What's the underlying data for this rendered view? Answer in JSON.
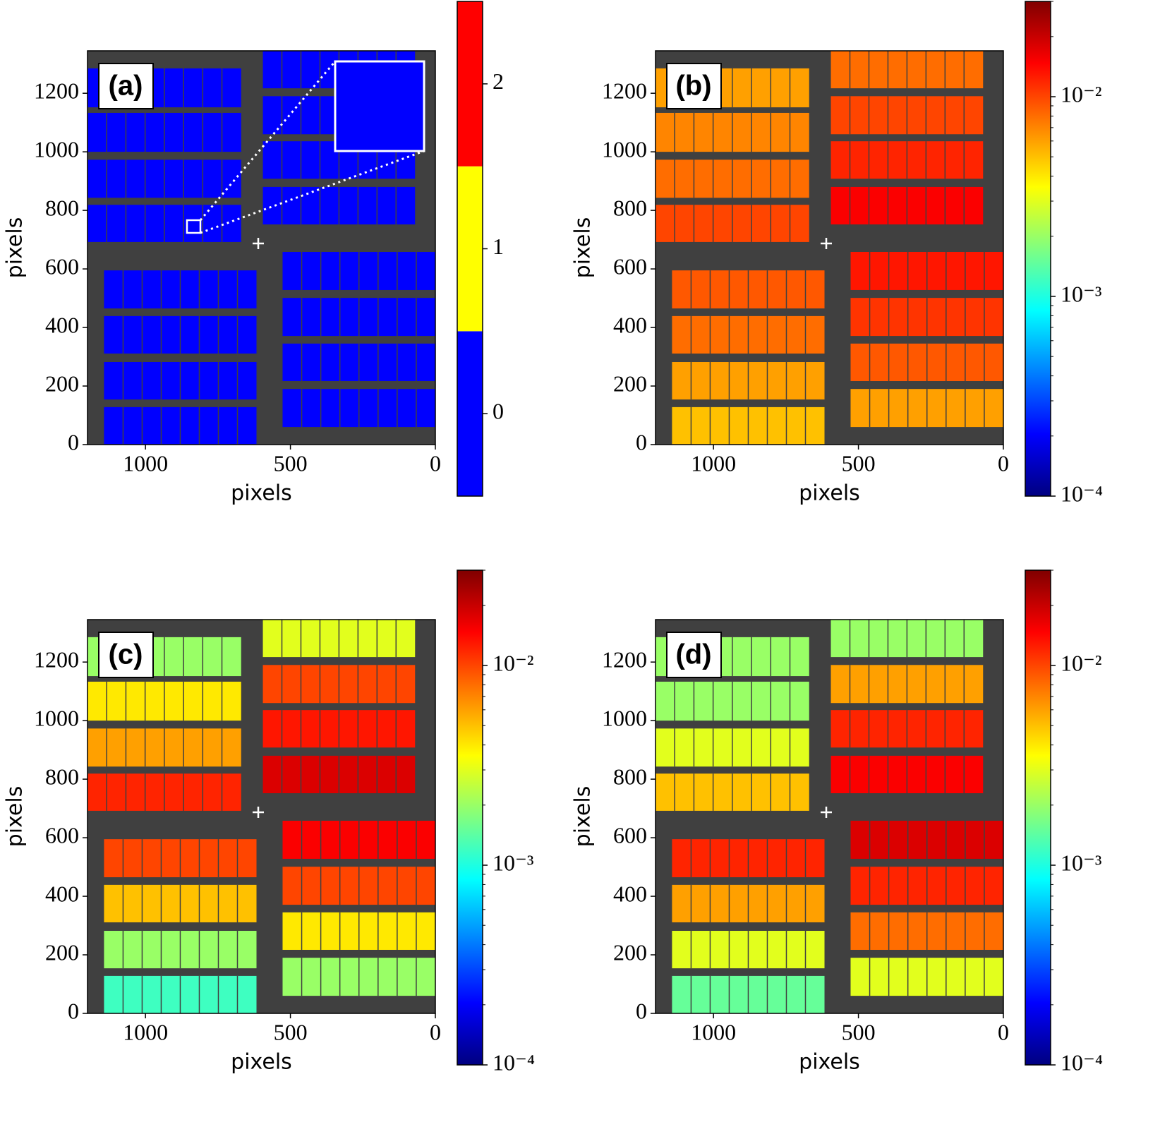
{
  "chart_data": [
    {
      "type": "heatmap",
      "panel_label": "(a)",
      "xlabel": "pixels",
      "ylabel": "pixels",
      "xlim": [
        1200,
        0
      ],
      "ylim": [
        0,
        1345
      ],
      "xticks": [
        1000,
        500,
        0
      ],
      "yticks": [
        0,
        200,
        400,
        600,
        800,
        1000,
        1200
      ],
      "colormap": "discrete",
      "colors": [
        "#0000ff",
        "#ffff00",
        "#ff0000"
      ],
      "clim": [
        -0.5,
        2.5
      ],
      "cticks": [
        0,
        1,
        2
      ],
      "clog": false,
      "modules": [
        {
          "x": [
            670,
            1200
          ],
          "y": [
            1152,
            1285
          ]
        },
        {
          "x": [
            670,
            1200
          ],
          "y": [
            1000,
            1133
          ]
        },
        {
          "x": [
            670,
            1200
          ],
          "y": [
            843,
            973
          ]
        },
        {
          "x": [
            670,
            1200
          ],
          "y": [
            692,
            819
          ]
        },
        {
          "x": [
            70,
            595
          ],
          "y": [
            1217,
            1345
          ]
        },
        {
          "x": [
            70,
            595
          ],
          "y": [
            1060,
            1190
          ]
        },
        {
          "x": [
            70,
            595
          ],
          "y": [
            908,
            1036
          ]
        },
        {
          "x": [
            70,
            595
          ],
          "y": [
            752,
            880
          ]
        },
        {
          "x": [
            617,
            1143
          ],
          "y": [
            465,
            595
          ]
        },
        {
          "x": [
            617,
            1143
          ],
          "y": [
            311,
            439
          ]
        },
        {
          "x": [
            617,
            1143
          ],
          "y": [
            154,
            282
          ]
        },
        {
          "x": [
            617,
            1143
          ],
          "y": [
            0,
            128
          ]
        },
        {
          "x": [
            0,
            527
          ],
          "y": [
            528,
            658
          ]
        },
        {
          "x": [
            0,
            527
          ],
          "y": [
            371,
            501
          ]
        },
        {
          "x": [
            0,
            527
          ],
          "y": [
            217,
            345
          ]
        },
        {
          "x": [
            0,
            527
          ],
          "y": [
            60,
            190
          ]
        }
      ],
      "values": [
        0,
        0,
        0,
        0,
        0,
        0,
        0,
        0,
        0,
        0,
        0,
        0,
        0,
        0,
        0,
        0
      ]
    },
    {
      "type": "heatmap",
      "panel_label": "(b)",
      "xlabel": "pixels",
      "ylabel": "pixels",
      "xlim": [
        1200,
        0
      ],
      "ylim": [
        0,
        1345
      ],
      "xticks": [
        1000,
        500,
        0
      ],
      "yticks": [
        0,
        200,
        400,
        600,
        800,
        1000,
        1200
      ],
      "colormap": "jet",
      "clim": [
        0.0001,
        0.03
      ],
      "clog": true,
      "cticks": [
        {
          "value": 0.0001,
          "label": "10⁻⁴"
        },
        {
          "value": 0.001,
          "label": "10⁻³"
        },
        {
          "value": 0.01,
          "label": "10⁻²"
        }
      ],
      "modules": [
        {
          "x": [
            670,
            1200
          ],
          "y": [
            1152,
            1285
          ]
        },
        {
          "x": [
            670,
            1200
          ],
          "y": [
            1000,
            1133
          ]
        },
        {
          "x": [
            670,
            1200
          ],
          "y": [
            843,
            973
          ]
        },
        {
          "x": [
            670,
            1200
          ],
          "y": [
            692,
            819
          ]
        },
        {
          "x": [
            70,
            595
          ],
          "y": [
            1217,
            1345
          ]
        },
        {
          "x": [
            70,
            595
          ],
          "y": [
            1060,
            1190
          ]
        },
        {
          "x": [
            70,
            595
          ],
          "y": [
            908,
            1036
          ]
        },
        {
          "x": [
            70,
            595
          ],
          "y": [
            752,
            880
          ]
        },
        {
          "x": [
            617,
            1143
          ],
          "y": [
            465,
            595
          ]
        },
        {
          "x": [
            617,
            1143
          ],
          "y": [
            311,
            439
          ]
        },
        {
          "x": [
            617,
            1143
          ],
          "y": [
            154,
            282
          ]
        },
        {
          "x": [
            617,
            1143
          ],
          "y": [
            0,
            128
          ]
        },
        {
          "x": [
            0,
            527
          ],
          "y": [
            528,
            658
          ]
        },
        {
          "x": [
            0,
            527
          ],
          "y": [
            371,
            501
          ]
        },
        {
          "x": [
            0,
            527
          ],
          "y": [
            217,
            345
          ]
        },
        {
          "x": [
            0,
            527
          ],
          "y": [
            60,
            190
          ]
        }
      ],
      "values": [
        0.006,
        0.007,
        0.008,
        0.01,
        0.008,
        0.01,
        0.012,
        0.015,
        0.009,
        0.008,
        0.006,
        0.005,
        0.013,
        0.011,
        0.009,
        0.006
      ]
    },
    {
      "type": "heatmap",
      "panel_label": "(c)",
      "xlabel": "pixels",
      "ylabel": "pixels",
      "xlim": [
        1200,
        0
      ],
      "ylim": [
        0,
        1345
      ],
      "xticks": [
        1000,
        500,
        0
      ],
      "yticks": [
        0,
        200,
        400,
        600,
        800,
        1000,
        1200
      ],
      "colormap": "jet",
      "clim": [
        0.0001,
        0.03
      ],
      "clog": true,
      "cticks": [
        {
          "value": 0.0001,
          "label": "10⁻⁴"
        },
        {
          "value": 0.001,
          "label": "10⁻³"
        },
        {
          "value": 0.01,
          "label": "10⁻²"
        }
      ],
      "modules": [
        {
          "x": [
            670,
            1200
          ],
          "y": [
            1152,
            1285
          ]
        },
        {
          "x": [
            670,
            1200
          ],
          "y": [
            1000,
            1133
          ]
        },
        {
          "x": [
            670,
            1200
          ],
          "y": [
            843,
            973
          ]
        },
        {
          "x": [
            670,
            1200
          ],
          "y": [
            692,
            819
          ]
        },
        {
          "x": [
            70,
            595
          ],
          "y": [
            1217,
            1345
          ]
        },
        {
          "x": [
            70,
            595
          ],
          "y": [
            1060,
            1190
          ]
        },
        {
          "x": [
            70,
            595
          ],
          "y": [
            908,
            1036
          ]
        },
        {
          "x": [
            70,
            595
          ],
          "y": [
            752,
            880
          ]
        },
        {
          "x": [
            617,
            1143
          ],
          "y": [
            465,
            595
          ]
        },
        {
          "x": [
            617,
            1143
          ],
          "y": [
            311,
            439
          ]
        },
        {
          "x": [
            617,
            1143
          ],
          "y": [
            154,
            282
          ]
        },
        {
          "x": [
            617,
            1143
          ],
          "y": [
            0,
            128
          ]
        },
        {
          "x": [
            0,
            527
          ],
          "y": [
            528,
            658
          ]
        },
        {
          "x": [
            0,
            527
          ],
          "y": [
            371,
            501
          ]
        },
        {
          "x": [
            0,
            527
          ],
          "y": [
            217,
            345
          ]
        },
        {
          "x": [
            0,
            527
          ],
          "y": [
            60,
            190
          ]
        }
      ],
      "values": [
        0.002,
        0.004,
        0.006,
        0.012,
        0.003,
        0.01,
        0.013,
        0.018,
        0.01,
        0.005,
        0.002,
        0.0012,
        0.015,
        0.01,
        0.004,
        0.002
      ]
    },
    {
      "type": "heatmap",
      "panel_label": "(d)",
      "xlabel": "pixels",
      "ylabel": "pixels",
      "xlim": [
        1200,
        0
      ],
      "ylim": [
        0,
        1345
      ],
      "xticks": [
        1000,
        500,
        0
      ],
      "yticks": [
        0,
        200,
        400,
        600,
        800,
        1000,
        1200
      ],
      "colormap": "jet",
      "clim": [
        0.0001,
        0.03
      ],
      "clog": true,
      "cticks": [
        {
          "value": 0.0001,
          "label": "10⁻⁴"
        },
        {
          "value": 0.001,
          "label": "10⁻³"
        },
        {
          "value": 0.01,
          "label": "10⁻²"
        }
      ],
      "modules": [
        {
          "x": [
            670,
            1200
          ],
          "y": [
            1152,
            1285
          ]
        },
        {
          "x": [
            670,
            1200
          ],
          "y": [
            1000,
            1133
          ]
        },
        {
          "x": [
            670,
            1200
          ],
          "y": [
            843,
            973
          ]
        },
        {
          "x": [
            670,
            1200
          ],
          "y": [
            692,
            819
          ]
        },
        {
          "x": [
            70,
            595
          ],
          "y": [
            1217,
            1345
          ]
        },
        {
          "x": [
            70,
            595
          ],
          "y": [
            1060,
            1190
          ]
        },
        {
          "x": [
            70,
            595
          ],
          "y": [
            908,
            1036
          ]
        },
        {
          "x": [
            70,
            595
          ],
          "y": [
            752,
            880
          ]
        },
        {
          "x": [
            617,
            1143
          ],
          "y": [
            465,
            595
          ]
        },
        {
          "x": [
            617,
            1143
          ],
          "y": [
            311,
            439
          ]
        },
        {
          "x": [
            617,
            1143
          ],
          "y": [
            154,
            282
          ]
        },
        {
          "x": [
            617,
            1143
          ],
          "y": [
            0,
            128
          ]
        },
        {
          "x": [
            0,
            527
          ],
          "y": [
            528,
            658
          ]
        },
        {
          "x": [
            0,
            527
          ],
          "y": [
            371,
            501
          ]
        },
        {
          "x": [
            0,
            527
          ],
          "y": [
            217,
            345
          ]
        },
        {
          "x": [
            0,
            527
          ],
          "y": [
            60,
            190
          ]
        }
      ],
      "values": [
        0.002,
        0.002,
        0.003,
        0.005,
        0.002,
        0.006,
        0.012,
        0.015,
        0.012,
        0.006,
        0.003,
        0.0015,
        0.018,
        0.012,
        0.008,
        0.003
      ]
    }
  ]
}
